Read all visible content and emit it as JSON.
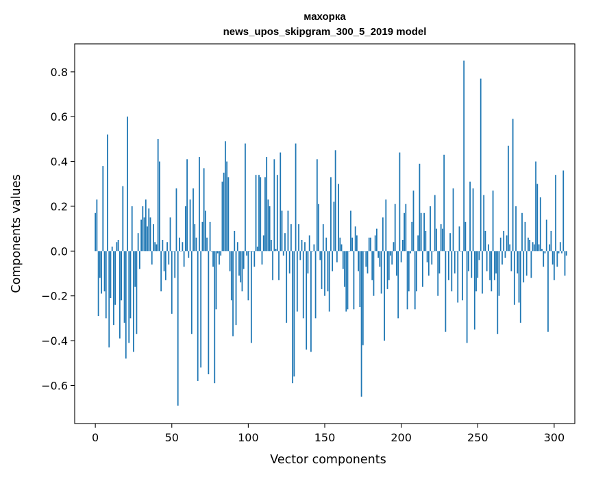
{
  "chart_data": {
    "type": "bar",
    "title": "махорка",
    "subtitle": "news_upos_skipgram_300_5_2019 model",
    "xlabel": "Vector components",
    "ylabel": "Components values",
    "xlim": [
      -13.5,
      313.5
    ],
    "ylim": [
      -0.77,
      0.925
    ],
    "xticks": [
      0,
      50,
      100,
      150,
      200,
      250,
      300
    ],
    "xtick_labels": [
      "0",
      "50",
      "100",
      "150",
      "200",
      "250",
      "300"
    ],
    "yticks": [
      -0.6,
      -0.4,
      -0.2,
      0.0,
      0.2,
      0.4,
      0.6,
      0.8
    ],
    "ytick_labels": [
      "−0.6",
      "−0.4",
      "−0.2",
      "0.0",
      "0.2",
      "0.4",
      "0.6",
      "0.8"
    ],
    "grid": false,
    "bar_color": "#1f77b4",
    "x_start": 0,
    "values": [
      0.17,
      0.23,
      -0.29,
      -0.12,
      -0.19,
      0.38,
      -0.18,
      -0.3,
      0.52,
      -0.43,
      -0.21,
      0.02,
      -0.33,
      -0.24,
      0.04,
      0.05,
      -0.39,
      -0.22,
      0.29,
      -0.32,
      -0.48,
      0.6,
      -0.41,
      -0.3,
      0.2,
      -0.45,
      -0.16,
      -0.37,
      0.08,
      -0.08,
      0.14,
      0.2,
      0.15,
      0.23,
      0.11,
      0.19,
      0.15,
      -0.06,
      0.12,
      0.04,
      0.03,
      0.5,
      0.4,
      -0.18,
      0.05,
      -0.09,
      -0.13,
      0.04,
      -0.06,
      0.15,
      -0.28,
      0.0,
      -0.12,
      0.28,
      -0.69,
      0.06,
      0.0,
      0.04,
      -0.07,
      0.2,
      0.41,
      -0.03,
      0.23,
      -0.37,
      0.28,
      0.12,
      0.06,
      -0.58,
      0.42,
      -0.52,
      0.13,
      0.37,
      0.18,
      0.06,
      -0.55,
      0.13,
      0.0,
      -0.07,
      -0.59,
      -0.26,
      -0.01,
      -0.06,
      -0.02,
      0.31,
      0.35,
      0.49,
      0.4,
      0.33,
      -0.09,
      -0.22,
      -0.38,
      0.09,
      -0.33,
      0.04,
      -0.11,
      -0.14,
      -0.18,
      -0.08,
      0.48,
      -0.02,
      -0.22,
      0.0,
      -0.41,
      0.0,
      -0.07,
      0.34,
      0.02,
      0.34,
      0.33,
      -0.06,
      0.07,
      0.33,
      0.42,
      0.23,
      0.2,
      0.05,
      -0.13,
      0.41,
      0.01,
      0.34,
      -0.13,
      0.44,
      0.18,
      -0.02,
      0.08,
      -0.32,
      0.18,
      -0.1,
      0.12,
      -0.59,
      -0.56,
      0.48,
      -0.27,
      0.12,
      -0.04,
      0.05,
      -0.3,
      0.04,
      -0.44,
      -0.1,
      0.07,
      -0.45,
      0.0,
      0.03,
      -0.3,
      0.41,
      0.21,
      -0.04,
      -0.17,
      0.12,
      -0.2,
      0.06,
      -0.18,
      -0.27,
      0.33,
      -0.09,
      0.22,
      0.45,
      -0.05,
      0.3,
      0.06,
      0.03,
      -0.08,
      -0.16,
      -0.27,
      -0.26,
      0.0,
      0.18,
      0.06,
      -0.26,
      0.11,
      0.07,
      -0.09,
      -0.25,
      -0.65,
      -0.42,
      0.0,
      -0.07,
      -0.1,
      0.06,
      0.06,
      -0.13,
      -0.2,
      0.07,
      0.1,
      -0.03,
      -0.07,
      -0.19,
      0.15,
      -0.4,
      0.23,
      -0.17,
      -0.13,
      -0.02,
      -0.06,
      0.04,
      0.21,
      -0.11,
      -0.3,
      0.44,
      -0.05,
      0.05,
      0.17,
      0.21,
      -0.26,
      -0.18,
      -0.01,
      0.13,
      0.27,
      -0.26,
      -0.18,
      0.07,
      0.39,
      0.17,
      -0.16,
      0.17,
      0.09,
      -0.05,
      -0.11,
      0.2,
      -0.06,
      0.0,
      0.25,
      0.1,
      -0.2,
      -0.1,
      0.12,
      0.1,
      0.43,
      -0.36,
      0.0,
      -0.13,
      0.08,
      -0.18,
      0.28,
      -0.1,
      0.0,
      -0.23,
      0.11,
      0.0,
      -0.22,
      0.85,
      0.13,
      -0.41,
      -0.09,
      0.31,
      -0.12,
      0.28,
      -0.35,
      -0.18,
      -0.12,
      -0.04,
      0.77,
      -0.19,
      0.25,
      0.09,
      -0.09,
      0.03,
      -0.13,
      -0.18,
      0.27,
      -0.13,
      -0.1,
      -0.37,
      -0.2,
      0.06,
      -0.06,
      0.09,
      -0.03,
      0.07,
      0.47,
      0.03,
      -0.09,
      0.59,
      -0.24,
      0.2,
      -0.1,
      -0.23,
      -0.32,
      0.17,
      -0.14,
      0.13,
      -0.11,
      0.06,
      0.05,
      -0.12,
      0.04,
      0.03,
      0.4,
      0.3,
      0.03,
      0.24,
      0.01,
      -0.07,
      -0.01,
      0.14,
      -0.36,
      0.03,
      0.09,
      -0.06,
      -0.13,
      0.34,
      -0.07,
      -0.01,
      0.04,
      -0.01,
      0.36,
      -0.11,
      -0.02
    ]
  }
}
